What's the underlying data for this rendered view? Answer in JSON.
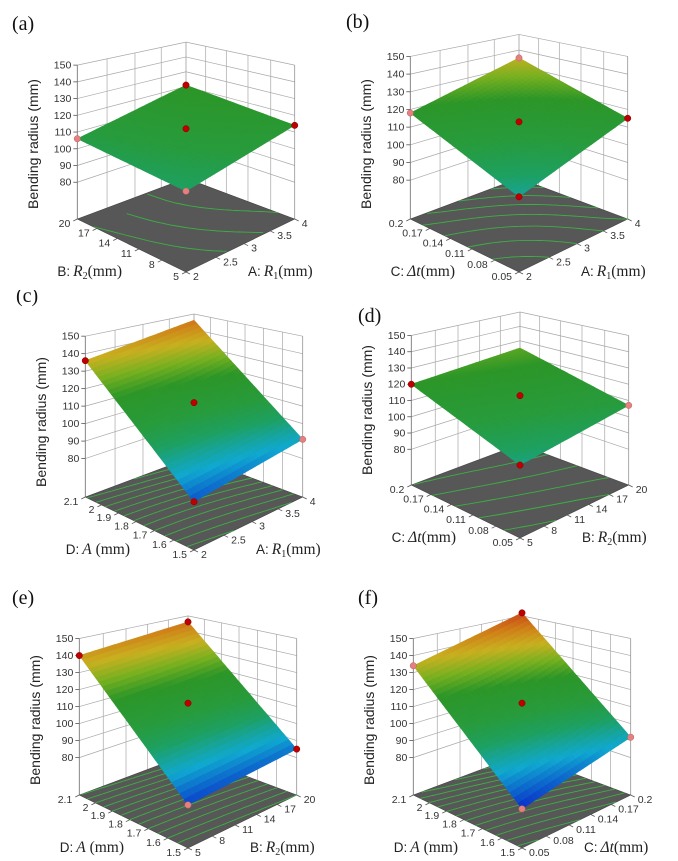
{
  "chart_data": [
    {
      "type": "surface3d",
      "label": "(a)",
      "zlabel": "Bending radius  (mm)",
      "zticks": [
        80,
        90,
        100,
        110,
        120,
        130,
        140,
        150
      ],
      "zlim": [
        80,
        150
      ],
      "axis1": {
        "prefix": "A:",
        "var": "R",
        "sub": "1",
        "unit": "(mm)",
        "range": [
          2,
          4
        ],
        "ticks": [
          2,
          2.5,
          3,
          3.5,
          4
        ]
      },
      "axis2": {
        "prefix": "B:",
        "var": "R",
        "sub": "2",
        "unit": "(mm)",
        "range": [
          5,
          20
        ],
        "ticks": [
          5,
          8,
          11,
          14,
          17,
          20
        ]
      },
      "surface": {
        "front": 100,
        "right": 114,
        "left": 106,
        "back": 121,
        "center": 112
      },
      "design_points": [
        {
          "x1": 2,
          "x2": 5,
          "z": 100,
          "below": true
        },
        {
          "x1": 4,
          "x2": 5,
          "z": 114,
          "below": false
        },
        {
          "x1": 2,
          "x2": 20,
          "z": 106,
          "below": true
        },
        {
          "x1": 4,
          "x2": 20,
          "z": 121,
          "below": false
        },
        {
          "x1": 3,
          "x2": 12.5,
          "z": 112,
          "below": false
        }
      ]
    },
    {
      "type": "surface3d",
      "label": "(b)",
      "zlabel": "Bending radius  (mm)",
      "zticks": [
        80,
        90,
        100,
        110,
        120,
        130,
        140,
        150
      ],
      "zlim": [
        80,
        150
      ],
      "axis1": {
        "prefix": "A:",
        "var": "R",
        "sub": "1",
        "unit": "(mm)",
        "range": [
          2,
          4
        ],
        "ticks": [
          2,
          2.5,
          3,
          3.5,
          4
        ]
      },
      "axis2": {
        "prefix": "C:",
        "var": "Δt",
        "sub": "",
        "unit": "(mm)",
        "range": [
          0.05,
          0.2
        ],
        "ticks": [
          0.05,
          0.08,
          0.11,
          0.14,
          0.17,
          0.2
        ]
      },
      "surface": {
        "front": 95,
        "right": 115,
        "left": 118,
        "back": 135,
        "center": 113
      },
      "design_points": [
        {
          "x1": 2,
          "x2": 0.05,
          "z": 95,
          "below": false
        },
        {
          "x1": 4,
          "x2": 0.05,
          "z": 115,
          "below": false
        },
        {
          "x1": 2,
          "x2": 0.2,
          "z": 118,
          "below": true
        },
        {
          "x1": 4,
          "x2": 0.2,
          "z": 135,
          "below": true
        },
        {
          "x1": 3,
          "x2": 0.125,
          "z": 113,
          "below": false
        }
      ]
    },
    {
      "type": "surface3d",
      "label": "(c)",
      "zlabel": "Bending radius  (mm)",
      "zticks": [
        80,
        90,
        100,
        110,
        120,
        130,
        140,
        150
      ],
      "zlim": [
        80,
        150
      ],
      "axis1": {
        "prefix": "A:",
        "var": "R",
        "sub": "1",
        "unit": "(mm)",
        "range": [
          2,
          4
        ],
        "ticks": [
          2,
          2.5,
          3,
          3.5,
          4
        ]
      },
      "axis2": {
        "prefix": "D:",
        "var": "A",
        "sub": "",
        "unit": " (mm)",
        "range": [
          1.5,
          2.1
        ],
        "ticks": [
          1.5,
          1.6,
          1.7,
          1.8,
          1.9,
          2,
          2.1
        ]
      },
      "surface": {
        "front": 82,
        "right": 91,
        "left": 136,
        "back": 146,
        "center": 112
      },
      "design_points": [
        {
          "x1": 2,
          "x2": 1.5,
          "z": 82,
          "below": false
        },
        {
          "x1": 4,
          "x2": 1.5,
          "z": 91,
          "below": true
        },
        {
          "x1": 2,
          "x2": 2.1,
          "z": 136,
          "below": false
        },
        {
          "x1": 3,
          "x2": 1.8,
          "z": 112,
          "below": false
        }
      ]
    },
    {
      "type": "surface3d",
      "label": "(d)",
      "zlabel": "Bending radius  (mm)",
      "zticks": [
        80,
        90,
        100,
        110,
        120,
        130,
        140,
        150
      ],
      "zlim": [
        80,
        150
      ],
      "axis1": {
        "prefix": "B:",
        "var": "R",
        "sub": "2",
        "unit": "(mm)",
        "range": [
          5,
          20
        ],
        "ticks": [
          5,
          8,
          11,
          14,
          17,
          20
        ]
      },
      "axis2": {
        "prefix": "C:",
        "var": "Δt",
        "sub": "",
        "unit": "(mm)",
        "range": [
          0.05,
          0.2
        ],
        "ticks": [
          0.05,
          0.08,
          0.11,
          0.14,
          0.17,
          0.2
        ]
      },
      "surface": {
        "front": 97,
        "right": 107,
        "left": 120,
        "back": 125,
        "center": 113
      },
      "design_points": [
        {
          "x1": 5,
          "x2": 0.05,
          "z": 97,
          "below": false
        },
        {
          "x1": 20,
          "x2": 0.05,
          "z": 107,
          "below": true
        },
        {
          "x1": 5,
          "x2": 0.2,
          "z": 120,
          "below": false
        },
        {
          "x1": 12.5,
          "x2": 0.125,
          "z": 113,
          "below": false
        }
      ]
    },
    {
      "type": "surface3d",
      "label": "(e)",
      "zlabel": "Bending radius  (mm)",
      "zticks": [
        80,
        90,
        100,
        110,
        120,
        130,
        140,
        150
      ],
      "zlim": [
        80,
        150
      ],
      "axis1": {
        "prefix": "B:",
        "var": "R",
        "sub": "2",
        "unit": "(mm)",
        "range": [
          5,
          20
        ],
        "ticks": [
          5,
          8,
          11,
          14,
          17,
          20
        ]
      },
      "axis2": {
        "prefix": "D:",
        "var": "A",
        "sub": "",
        "unit": " (mm)",
        "range": [
          1.5,
          2.1
        ],
        "ticks": [
          1.5,
          1.6,
          1.7,
          1.8,
          1.9,
          2,
          2.1
        ]
      },
      "surface": {
        "front": 80,
        "right": 85,
        "left": 140,
        "back": 146,
        "center": 112
      },
      "design_points": [
        {
          "x1": 5,
          "x2": 1.5,
          "z": 80,
          "below": true
        },
        {
          "x1": 20,
          "x2": 1.5,
          "z": 85,
          "below": false
        },
        {
          "x1": 5,
          "x2": 2.1,
          "z": 140,
          "below": false
        },
        {
          "x1": 20,
          "x2": 2.1,
          "z": 146,
          "below": false
        },
        {
          "x1": 12.5,
          "x2": 1.8,
          "z": 112,
          "below": false
        }
      ]
    },
    {
      "type": "surface3d",
      "label": "(f)",
      "zlabel": "Bending radius  (mm)",
      "zticks": [
        80,
        90,
        100,
        110,
        120,
        130,
        140,
        150
      ],
      "zlim": [
        80,
        150
      ],
      "axis1": {
        "prefix": "C:",
        "var": "Δt",
        "sub": "",
        "unit": "(mm)",
        "range": [
          0.05,
          0.2
        ],
        "ticks": [
          0.05,
          0.08,
          0.11,
          0.14,
          0.17,
          0.2
        ]
      },
      "axis2": {
        "prefix": "D:",
        "var": "A",
        "sub": "",
        "unit": " (mm)",
        "range": [
          1.5,
          2.1
        ],
        "ticks": [
          1.5,
          1.6,
          1.7,
          1.8,
          1.9,
          2,
          2.1
        ]
      },
      "surface": {
        "front": 78,
        "right": 92,
        "left": 134,
        "back": 152,
        "center": 112
      },
      "design_points": [
        {
          "x1": 0.05,
          "x2": 1.5,
          "z": 78,
          "below": true
        },
        {
          "x1": 0.2,
          "x2": 1.5,
          "z": 92,
          "below": true
        },
        {
          "x1": 0.05,
          "x2": 2.1,
          "z": 134,
          "below": true
        },
        {
          "x1": 0.2,
          "x2": 2.1,
          "z": 152,
          "below": false
        },
        {
          "x1": 0.125,
          "x2": 1.8,
          "z": 112,
          "below": false
        }
      ]
    }
  ],
  "colors": {
    "floor": "#575757",
    "grid": "#a8a8a8",
    "contour": "#3cb043",
    "point": "#c00000",
    "point_below": "#e58080"
  }
}
